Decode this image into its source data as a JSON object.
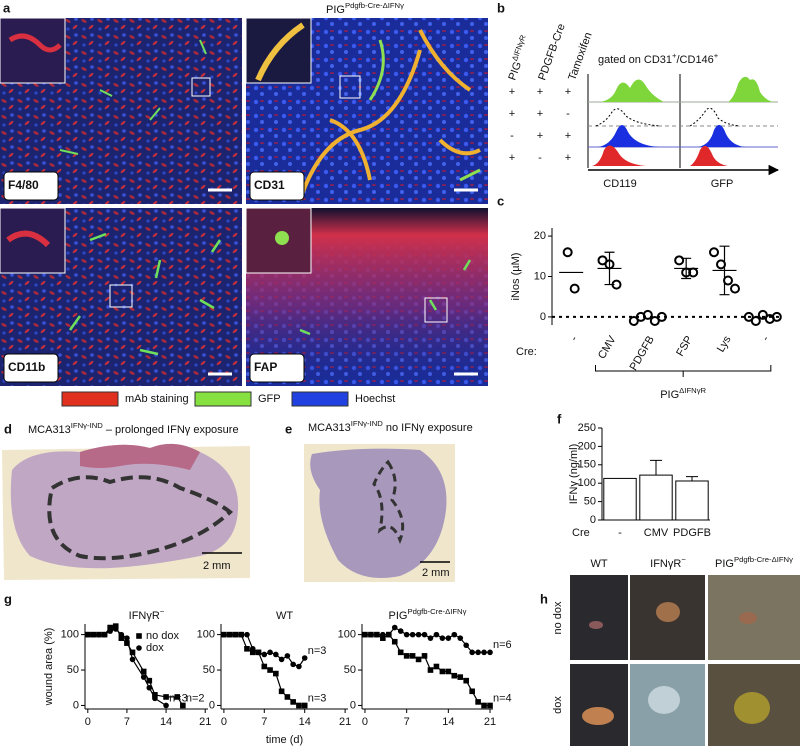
{
  "figure": {
    "a": {
      "letter": "a",
      "title": {
        "base": "PIG",
        "sup": "Pdgfb-Cre-ΔIFNγ"
      },
      "image_labels": [
        "F4/80",
        "CD31",
        "CD11b",
        "FAP"
      ],
      "legend": [
        "mAb staining",
        "GFP",
        "Hoechst"
      ]
    },
    "b": {
      "letter": "b",
      "columns": [
        {
          "base": "PIG",
          "sup": "ΔIFNγR"
        },
        "PDGFB-Cre",
        "Tamoxifen"
      ],
      "gate": [
        "gated on CD31",
        "+",
        "/CD146",
        "+"
      ],
      "rows": [
        [
          "+",
          "+",
          "+"
        ],
        [
          "+",
          "+",
          "-"
        ],
        [
          "-",
          "+",
          "+"
        ],
        [
          "+",
          "-",
          "+"
        ]
      ],
      "axis_labels": [
        "CD119",
        "GFP"
      ]
    },
    "d": {
      "letter": "d",
      "title": {
        "base": "MCA313",
        "sup": "IFNγ-IND",
        "rest": " – prolonged IFNγ exposure"
      },
      "scale": "2 mm"
    },
    "e": {
      "letter": "e",
      "title": {
        "base": "MCA313",
        "sup": "IFNγ-IND",
        "rest": " no  IFNγ exposure"
      },
      "scale": "2 mm"
    },
    "h": {
      "letter": "h",
      "columns": [
        "WT",
        {
          "base": "IFNγR",
          "sup": "−"
        },
        {
          "base": "PIG",
          "sup": "Pdgfb-Cre-ΔIFNγ"
        }
      ],
      "rows": [
        "no dox",
        "dox"
      ]
    }
  },
  "chart_data": [
    {
      "type": "scatter",
      "letter": "c",
      "ylabel": "iNos (µM)",
      "xlabel": "Cre:",
      "group_label": {
        "base": "PIG",
        "sup": "ΔIFNγR"
      },
      "categories": [
        "-",
        "CMV",
        "PDGFB",
        "FSP",
        "Lys",
        "-"
      ],
      "points": [
        [
          16,
          7
        ],
        [
          14,
          13,
          8
        ],
        [
          -1,
          0,
          0.5,
          -1,
          0
        ],
        [
          14,
          11,
          11
        ],
        [
          16,
          13,
          9,
          7
        ],
        [
          0,
          -1,
          0.5,
          -0.5,
          0
        ]
      ],
      "means": [
        11,
        12,
        null,
        12,
        11.5,
        null
      ],
      "errors": [
        null,
        4,
        null,
        2.5,
        6,
        null
      ],
      "ylim": [
        -2,
        22
      ],
      "yticks": [
        0,
        10,
        20
      ],
      "color": "#000000"
    },
    {
      "type": "bar",
      "letter": "f",
      "ylabel": "IFNγ (ng/ml)",
      "xlabel": "Cre",
      "categories": [
        "-",
        "CMV",
        "PDGFB"
      ],
      "values": [
        113,
        122,
        106
      ],
      "errors": [
        null,
        40,
        12
      ],
      "ylim": [
        0,
        250
      ],
      "yticks": [
        0,
        50,
        100,
        150,
        200,
        250
      ],
      "color": "#ffffff"
    },
    {
      "type": "line",
      "letter": "g",
      "title": {
        "base": "IFNγR",
        "sup": "−"
      },
      "ylabel": "wound area (%)",
      "legend": true,
      "xlim": [
        -0.5,
        21.5
      ],
      "xticks": [
        0,
        7,
        14,
        21
      ],
      "ylim": [
        -5,
        115
      ],
      "yticks": [
        0,
        50,
        100
      ],
      "series": [
        {
          "name": "no dox",
          "marker": "square",
          "color": "#000000",
          "n_label": "n=2",
          "x": [
            0,
            1,
            2,
            3,
            4,
            5,
            6,
            7,
            8,
            10,
            11,
            12,
            14,
            16,
            17
          ],
          "values": [
            100,
            100,
            100,
            100,
            110,
            112,
            95,
            88,
            75,
            48,
            35,
            15,
            12,
            12,
            0
          ]
        },
        {
          "name": "dox",
          "marker": "circle",
          "color": "#000000",
          "n_label": "n=3",
          "x": [
            0,
            1,
            2,
            3,
            4,
            5,
            6,
            7,
            8,
            10,
            11,
            12,
            14
          ],
          "values": [
            100,
            100,
            100,
            100,
            105,
            108,
            100,
            95,
            65,
            40,
            25,
            10,
            0
          ]
        }
      ]
    },
    {
      "type": "line",
      "title": "WT",
      "xlabel": "time (d)",
      "xlim": [
        -0.5,
        21.5
      ],
      "xticks": [
        0,
        7,
        14,
        21
      ],
      "ylim": [
        -5,
        115
      ],
      "yticks": [
        0,
        50,
        100
      ],
      "series": [
        {
          "marker": "square",
          "color": "#000000",
          "n_label": "n=3",
          "x": [
            0,
            1,
            2,
            3,
            4,
            5,
            6,
            7,
            8,
            9,
            10,
            11,
            12,
            13,
            14
          ],
          "values": [
            100,
            100,
            100,
            100,
            80,
            75,
            75,
            55,
            50,
            45,
            20,
            12,
            5,
            0,
            0
          ]
        },
        {
          "marker": "circle",
          "color": "#000000",
          "n_label": "n=3",
          "x": [
            0,
            1,
            2,
            3,
            4,
            5,
            6,
            7,
            8,
            9,
            10,
            11,
            12,
            13,
            14
          ],
          "values": [
            100,
            100,
            100,
            100,
            100,
            80,
            75,
            72,
            75,
            72,
            65,
            70,
            58,
            55,
            67
          ]
        }
      ]
    },
    {
      "type": "line",
      "title": {
        "base": "PIG",
        "sup": "Pdgfb-Cre-ΔIFNγ"
      },
      "xlim": [
        -0.5,
        21.5
      ],
      "xticks": [
        0,
        7,
        14,
        21
      ],
      "ylim": [
        -5,
        115
      ],
      "yticks": [
        0,
        50,
        100
      ],
      "series": [
        {
          "marker": "square",
          "color": "#000000",
          "n_label": "n=4",
          "x": [
            0,
            1,
            2,
            3,
            4,
            5,
            6,
            7,
            8,
            9,
            10,
            11,
            12,
            13,
            14,
            15,
            16,
            17,
            18,
            19,
            20,
            21
          ],
          "values": [
            100,
            100,
            100,
            95,
            100,
            90,
            75,
            70,
            70,
            65,
            70,
            50,
            55,
            48,
            48,
            42,
            40,
            35,
            20,
            5,
            0,
            0
          ]
        },
        {
          "marker": "circle",
          "color": "#000000",
          "n_label": "n=6",
          "x": [
            0,
            1,
            2,
            3,
            4,
            5,
            6,
            7,
            8,
            9,
            10,
            11,
            12,
            13,
            14,
            15,
            16,
            17,
            18,
            19,
            20,
            21
          ],
          "values": [
            100,
            100,
            100,
            100,
            100,
            110,
            105,
            100,
            100,
            100,
            100,
            95,
            100,
            95,
            95,
            100,
            95,
            85,
            75,
            75,
            75,
            75
          ]
        }
      ]
    }
  ]
}
